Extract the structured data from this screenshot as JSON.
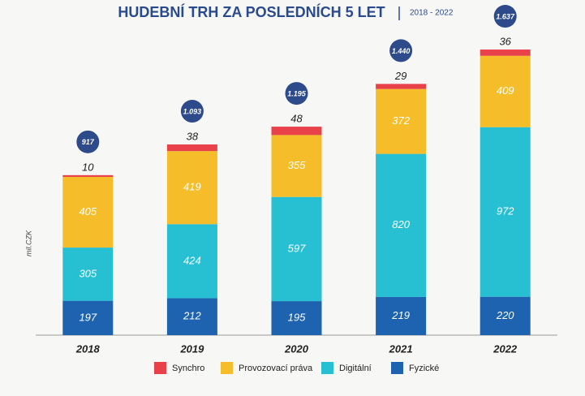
{
  "chart_data": {
    "type": "stacked_bar",
    "title": "HUDEBNÍ TRH ZA POSLEDNÍCH 5 LET",
    "subtitle": "2018 - 2022",
    "y_label": "mil.CZK",
    "categories": [
      "2018",
      "2019",
      "2020",
      "2021",
      "2022"
    ],
    "series": [
      {
        "name": "Fyzické",
        "color": "#1d63b0",
        "values": [
          197,
          212,
          195,
          219,
          220
        ]
      },
      {
        "name": "Digitální",
        "color": "#27bfd2",
        "values": [
          305,
          424,
          597,
          820,
          972
        ]
      },
      {
        "name": "Provozovací práva",
        "color": "#f5bd2a",
        "values": [
          405,
          419,
          355,
          372,
          409
        ]
      },
      {
        "name": "Synchro",
        "color": "#e8414a",
        "values": [
          10,
          38,
          48,
          29,
          36
        ]
      }
    ],
    "totals": {
      "values": [
        917,
        1093,
        1195,
        1440,
        1637
      ],
      "value_labels": [
        "917",
        "1.093",
        "1.195",
        "1.440",
        "1.637"
      ],
      "color": "#2d4a8a"
    },
    "ylim": [
      0,
      1800
    ],
    "legend": "bottom"
  }
}
